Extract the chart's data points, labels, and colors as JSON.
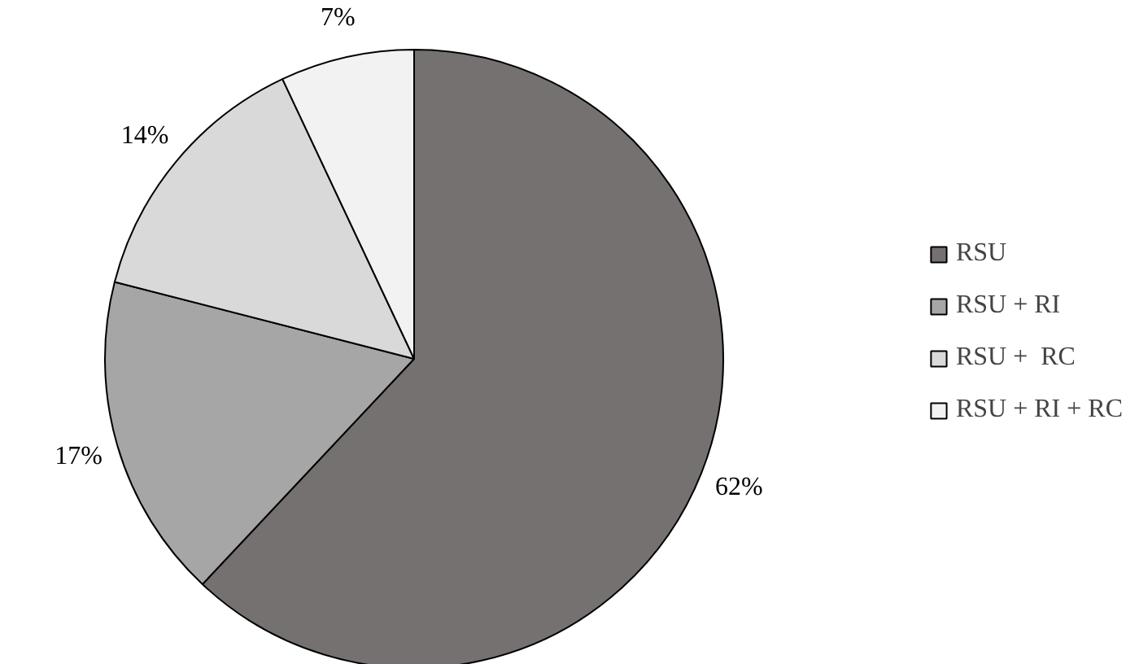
{
  "chart_data": {
    "type": "pie",
    "categories": [
      "RSU",
      "RSU + RI",
      "RSU +  RC",
      "RSU + RI + RC"
    ],
    "values": [
      62,
      17,
      14,
      7
    ],
    "colors": [
      "#767171",
      "#a6a6a6",
      "#d9d9d9",
      "#f2f2f2"
    ],
    "value_labels": [
      "62%",
      "17%",
      "14%",
      "7%"
    ],
    "legend": "right"
  }
}
